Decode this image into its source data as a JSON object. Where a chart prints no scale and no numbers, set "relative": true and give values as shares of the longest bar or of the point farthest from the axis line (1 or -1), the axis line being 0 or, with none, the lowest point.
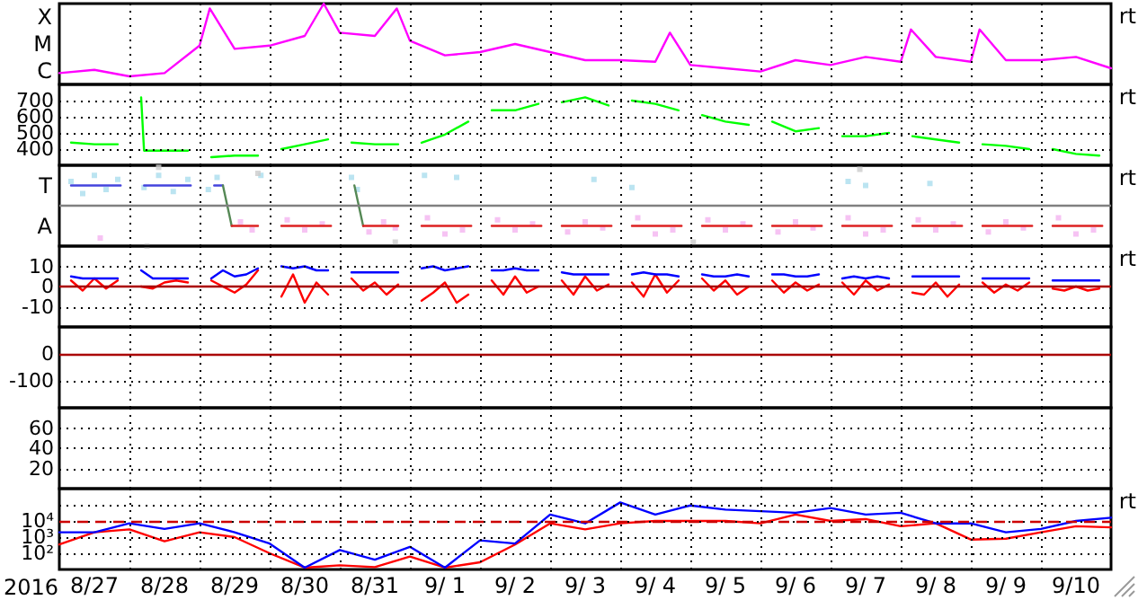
{
  "chart_data": [
    {
      "type": "line",
      "tick_labels": false,
      "relative": true,
      "grid": "x",
      "annotations": [
        "rt",
        "X",
        "M",
        "C"
      ],
      "xlim": [
        "2016-08-27T00:00",
        "2016-09-11T00:00"
      ],
      "xticks": [
        {
          "value": "2016-08-28T00:00",
          "label": null
        },
        {
          "value": "2016-08-29T00:00",
          "label": null
        },
        {
          "value": "2016-08-30T00:00",
          "label": null
        },
        {
          "value": "2016-08-31T00:00",
          "label": null
        },
        {
          "value": "2016-09-01T00:00",
          "label": null
        },
        {
          "value": "2016-09-02T00:00",
          "label": null
        },
        {
          "value": "2016-09-03T00:00",
          "label": null
        },
        {
          "value": "2016-09-04T00:00",
          "label": null
        },
        {
          "value": "2016-09-05T00:00",
          "label": null
        },
        {
          "value": "2016-09-06T00:00",
          "label": null
        },
        {
          "value": "2016-09-07T00:00",
          "label": null
        },
        {
          "value": "2016-09-08T00:00",
          "label": null
        },
        {
          "value": "2016-09-09T00:00",
          "label": null
        },
        {
          "value": "2016-09-10T00:00",
          "label": null
        }
      ],
      "x": [
        "2016-08-27T00:00",
        "2016-08-27T12:00",
        "2016-08-28T00:00",
        "2016-08-28T12:00",
        "2016-08-29T00:00",
        "2016-08-29T03:30",
        "2016-08-29T12:00",
        "2016-08-30T00:00",
        "2016-08-30T12:00",
        "2016-08-30T18:30",
        "2016-08-31T00:00",
        "2016-08-31T12:00",
        "2016-08-31T19:30",
        "2016-09-01T00:00",
        "2016-09-01T12:00",
        "2016-09-02T00:00",
        "2016-09-02T12:00",
        "2016-09-03T00:00",
        "2016-09-03T12:00",
        "2016-09-04T00:00",
        "2016-09-04T12:00",
        "2016-09-04T17:00",
        "2016-09-05T00:00",
        "2016-09-05T12:00",
        "2016-09-06T00:00",
        "2016-09-06T12:00",
        "2016-09-07T00:00",
        "2016-09-07T12:00",
        "2016-09-08T00:00",
        "2016-09-08T03:30",
        "2016-09-08T12:00",
        "2016-09-09T00:00",
        "2016-09-09T03:00",
        "2016-09-09T12:00",
        "2016-09-10T00:00",
        "2016-09-10T12:00",
        "2016-09-11T00:00"
      ],
      "series": [
        {
          "color": "#ff00ff",
          "values": [
            0.14,
            0.18,
            0.1,
            0.14,
            0.48,
            0.94,
            0.44,
            0.48,
            0.6,
            1,
            0.64,
            0.6,
            0.94,
            0.54,
            0.36,
            0.4,
            0.5,
            0.4,
            0.3,
            0.3,
            0.28,
            0.64,
            0.24,
            0.2,
            0.16,
            0.3,
            0.24,
            0.34,
            0.28,
            0.68,
            0.34,
            0.28,
            0.68,
            0.3,
            0.3,
            0.34,
            0.2
          ]
        }
      ]
    },
    {
      "type": "line",
      "tick_labels": "y",
      "grid": true,
      "annotations": [
        "rt"
      ],
      "xlim": [
        "2016-08-27T00:00",
        "2016-09-11T00:00"
      ],
      "xticks": [
        {
          "value": "2016-08-28T00:00",
          "label": null
        },
        {
          "value": "2016-08-29T00:00",
          "label": null
        },
        {
          "value": "2016-08-30T00:00",
          "label": null
        },
        {
          "value": "2016-08-31T00:00",
          "label": null
        },
        {
          "value": "2016-09-01T00:00",
          "label": null
        },
        {
          "value": "2016-09-02T00:00",
          "label": null
        },
        {
          "value": "2016-09-03T00:00",
          "label": null
        },
        {
          "value": "2016-09-04T00:00",
          "label": null
        },
        {
          "value": "2016-09-05T00:00",
          "label": null
        },
        {
          "value": "2016-09-06T00:00",
          "label": null
        },
        {
          "value": "2016-09-07T00:00",
          "label": null
        },
        {
          "value": "2016-09-08T00:00",
          "label": null
        },
        {
          "value": "2016-09-09T00:00",
          "label": null
        },
        {
          "value": "2016-09-10T00:00",
          "label": null
        }
      ],
      "ylim": [
        300,
        800
      ],
      "yticks": [
        400,
        500,
        600,
        700
      ],
      "x": [
        "2016-08-27T04:00",
        "2016-08-27T12:00",
        "2016-08-27T20:00",
        "2016-08-28T00:00",
        "2016-08-28T04:00",
        "2016-08-28T05:00",
        "2016-08-28T12:00",
        "2016-08-28T20:00",
        "2016-08-29T00:00",
        "2016-08-29T04:00",
        "2016-08-29T12:00",
        "2016-08-29T20:00",
        "2016-08-30T00:00",
        "2016-08-30T04:00",
        "2016-08-30T12:00",
        "2016-08-30T20:00",
        "2016-08-31T00:00",
        "2016-08-31T04:00",
        "2016-08-31T12:00",
        "2016-08-31T20:00",
        "2016-09-01T00:00",
        "2016-09-01T04:00",
        "2016-09-01T12:00",
        "2016-09-01T20:00",
        "2016-09-02T00:00",
        "2016-09-02T04:00",
        "2016-09-02T12:00",
        "2016-09-02T20:00",
        "2016-09-03T00:00",
        "2016-09-03T04:00",
        "2016-09-03T12:00",
        "2016-09-03T20:00",
        "2016-09-04T00:00",
        "2016-09-04T04:00",
        "2016-09-04T12:00",
        "2016-09-04T20:00",
        "2016-09-05T00:00",
        "2016-09-05T04:00",
        "2016-09-05T12:00",
        "2016-09-05T20:00",
        "2016-09-06T00:00",
        "2016-09-06T04:00",
        "2016-09-06T12:00",
        "2016-09-06T20:00",
        "2016-09-07T00:00",
        "2016-09-07T04:00",
        "2016-09-07T12:00",
        "2016-09-07T20:00",
        "2016-09-08T00:00",
        "2016-09-08T04:00",
        "2016-09-08T12:00",
        "2016-09-08T20:00",
        "2016-09-09T00:00",
        "2016-09-09T04:00",
        "2016-09-09T12:00",
        "2016-09-09T20:00",
        "2016-09-10T00:00",
        "2016-09-10T04:00",
        "2016-09-10T12:00",
        "2016-09-10T20:00"
      ],
      "series": [
        {
          "color": "#00ff00",
          "values": [
            440,
            430,
            430,
            null,
            720,
            390,
            390,
            390,
            null,
            350,
            360,
            360,
            null,
            400,
            430,
            460,
            null,
            440,
            430,
            430,
            null,
            440,
            490,
            570,
            null,
            640,
            640,
            680,
            null,
            690,
            720,
            670,
            null,
            700,
            680,
            640,
            null,
            610,
            570,
            550,
            null,
            570,
            510,
            530,
            null,
            480,
            480,
            500,
            null,
            480,
            460,
            440,
            null,
            430,
            420,
            400,
            null,
            400,
            370,
            360
          ]
        }
      ]
    },
    {
      "type": "line",
      "tick_labels": false,
      "relative": true,
      "grid": "x",
      "annotations": [
        "rt",
        "T",
        "A"
      ],
      "xlim": [
        "2016-08-27T00:00",
        "2016-09-11T00:00"
      ],
      "xticks": [
        {
          "value": "2016-08-28T00:00",
          "label": null
        },
        {
          "value": "2016-08-29T00:00",
          "label": null
        },
        {
          "value": "2016-08-30T00:00",
          "label": null
        },
        {
          "value": "2016-08-31T00:00",
          "label": null
        },
        {
          "value": "2016-09-01T00:00",
          "label": null
        },
        {
          "value": "2016-09-02T00:00",
          "label": null
        },
        {
          "value": "2016-09-03T00:00",
          "label": null
        },
        {
          "value": "2016-09-04T00:00",
          "label": null
        },
        {
          "value": "2016-09-05T00:00",
          "label": null
        },
        {
          "value": "2016-09-06T00:00",
          "label": null
        },
        {
          "value": "2016-09-07T00:00",
          "label": null
        },
        {
          "value": "2016-09-08T00:00",
          "label": null
        },
        {
          "value": "2016-09-09T00:00",
          "label": null
        },
        {
          "value": "2016-09-10T00:00",
          "label": null
        }
      ],
      "ref_lines": [
        {
          "axis": "y",
          "value": 0,
          "color": "#808080"
        }
      ],
      "series": [
        {
          "type": "scatter",
          "marker": "square",
          "color": "#aaddee",
          "x": [
            "2016-08-27T04:00",
            "2016-08-27T08:00",
            "2016-08-27T12:00",
            "2016-08-27T16:00",
            "2016-08-27T20:00",
            "2016-08-28T05:00",
            "2016-08-28T10:00",
            "2016-08-28T15:00",
            "2016-08-28T20:00",
            "2016-08-29T03:00",
            "2016-08-29T06:00",
            "2016-08-29T21:00",
            "2016-08-31T04:00",
            "2016-08-31T06:00",
            "2016-09-01T05:00",
            "2016-09-01T16:00",
            "2016-09-03T15:00",
            "2016-09-04T04:00",
            "2016-09-07T06:00",
            "2016-09-07T12:00",
            "2016-09-08T10:00"
          ],
          "values": [
            0.6,
            0.3,
            0.75,
            0.4,
            0.65,
            0.45,
            0.75,
            0.35,
            0.65,
            0.4,
            0.7,
            0.75,
            0.7,
            0.4,
            0.75,
            0.7,
            0.65,
            0.45,
            0.6,
            0.5,
            0.55
          ]
        },
        {
          "type": "scatter",
          "marker": "square",
          "color": "#f4b4f0",
          "x": [
            "2016-08-27T14:00",
            "2016-08-29T14:00",
            "2016-08-29T18:00",
            "2016-08-30T06:00",
            "2016-08-30T12:00",
            "2016-08-30T18:00",
            "2016-08-31T10:00",
            "2016-08-31T15:00",
            "2016-08-31T19:00",
            "2016-09-01T06:00",
            "2016-09-01T12:00",
            "2016-09-01T18:00",
            "2016-09-02T06:00",
            "2016-09-02T12:00",
            "2016-09-02T18:00",
            "2016-09-03T06:00",
            "2016-09-03T12:00",
            "2016-09-03T18:00",
            "2016-09-04T06:00",
            "2016-09-04T12:00",
            "2016-09-04T18:00",
            "2016-09-05T06:00",
            "2016-09-05T12:00",
            "2016-09-05T18:00",
            "2016-09-06T06:00",
            "2016-09-06T12:00",
            "2016-09-06T18:00",
            "2016-09-07T06:00",
            "2016-09-07T12:00",
            "2016-09-07T18:00",
            "2016-09-08T06:00",
            "2016-09-08T12:00",
            "2016-09-08T18:00",
            "2016-09-09T06:00",
            "2016-09-09T12:00",
            "2016-09-09T18:00",
            "2016-09-10T06:00",
            "2016-09-10T12:00",
            "2016-09-10T18:00"
          ],
          "values": [
            -0.8,
            -0.4,
            -0.6,
            -0.35,
            -0.6,
            -0.45,
            -0.65,
            -0.4,
            -0.55,
            -0.3,
            -0.7,
            -0.6,
            -0.35,
            -0.6,
            -0.45,
            -0.65,
            -0.4,
            -0.55,
            -0.3,
            -0.7,
            -0.6,
            -0.35,
            -0.6,
            -0.45,
            -0.65,
            -0.4,
            -0.55,
            -0.3,
            -0.7,
            -0.6,
            -0.35,
            -0.6,
            -0.45,
            -0.65,
            -0.4,
            -0.55,
            -0.3,
            -0.7,
            -0.6
          ]
        },
        {
          "type": "scatter",
          "marker": "square",
          "color": "#cccccc",
          "x": [
            "2016-08-28T06:00",
            "2016-08-28T10:00",
            "2016-08-29T20:00",
            "2016-08-31T19:00",
            "2016-09-05T01:00",
            "2016-09-07T10:00"
          ],
          "values": [
            -1,
            0.95,
            0.8,
            -0.9,
            -0.9,
            0.9
          ]
        },
        {
          "color": "#4444dd",
          "x": [
            "2016-08-27T04:00",
            "2016-08-27T21:00",
            "2016-08-28T00:00",
            "2016-08-28T05:00",
            "2016-08-28T21:00",
            "2016-08-29T00:00",
            "2016-08-29T05:00",
            "2016-08-29T08:00"
          ],
          "values": [
            0.5,
            0.5,
            null,
            0.5,
            0.5,
            null,
            0.5,
            0.5
          ]
        },
        {
          "color": "#558855",
          "x": [
            "2016-08-29T08:00",
            "2016-08-29T11:00",
            "2016-08-29T12:00",
            "2016-08-31T05:00",
            "2016-08-31T08:00"
          ],
          "values": [
            0.5,
            -0.5,
            null,
            0.5,
            -0.5
          ]
        },
        {
          "color": "#dd2222",
          "x": [
            "2016-08-29T11:00",
            "2016-08-29T20:00",
            "2016-08-30T00:00",
            "2016-08-30T04:00",
            "2016-08-30T21:00",
            "2016-08-31T00:00",
            "2016-08-31T08:00",
            "2016-08-31T20:00",
            "2016-09-01T00:00",
            "2016-09-01T04:00",
            "2016-09-01T21:00",
            "2016-09-02T00:00",
            "2016-09-02T04:00",
            "2016-09-02T21:00",
            "2016-09-03T00:00",
            "2016-09-03T04:00",
            "2016-09-03T21:00",
            "2016-09-04T00:00",
            "2016-09-04T04:00",
            "2016-09-04T21:00",
            "2016-09-05T00:00",
            "2016-09-05T04:00",
            "2016-09-05T21:00",
            "2016-09-06T00:00",
            "2016-09-06T04:00",
            "2016-09-06T21:00",
            "2016-09-07T00:00",
            "2016-09-07T04:00",
            "2016-09-07T21:00",
            "2016-09-08T00:00",
            "2016-09-08T04:00",
            "2016-09-08T21:00",
            "2016-09-09T00:00",
            "2016-09-09T04:00",
            "2016-09-09T21:00",
            "2016-09-10T00:00",
            "2016-09-10T04:00",
            "2016-09-10T21:00"
          ],
          "values": [
            -0.5,
            -0.5,
            null,
            -0.5,
            -0.5,
            null,
            -0.5,
            -0.5,
            null,
            -0.5,
            -0.5,
            null,
            -0.5,
            -0.5,
            null,
            -0.5,
            -0.5,
            null,
            -0.5,
            -0.5,
            null,
            -0.5,
            -0.5,
            null,
            -0.5,
            -0.5,
            null,
            -0.5,
            -0.5,
            null,
            -0.5,
            -0.5,
            null,
            -0.5,
            -0.5,
            null,
            -0.5,
            -0.5
          ]
        }
      ]
    },
    {
      "type": "line",
      "tick_labels": "y",
      "grid": true,
      "annotations": [
        "rt"
      ],
      "xlim": [
        "2016-08-27T00:00",
        "2016-09-11T00:00"
      ],
      "xticks": [
        {
          "value": "2016-08-28T00:00",
          "label": null
        },
        {
          "value": "2016-08-29T00:00",
          "label": null
        },
        {
          "value": "2016-08-30T00:00",
          "label": null
        },
        {
          "value": "2016-08-31T00:00",
          "label": null
        },
        {
          "value": "2016-09-01T00:00",
          "label": null
        },
        {
          "value": "2016-09-02T00:00",
          "label": null
        },
        {
          "value": "2016-09-03T00:00",
          "label": null
        },
        {
          "value": "2016-09-04T00:00",
          "label": null
        },
        {
          "value": "2016-09-05T00:00",
          "label": null
        },
        {
          "value": "2016-09-06T00:00",
          "label": null
        },
        {
          "value": "2016-09-07T00:00",
          "label": null
        },
        {
          "value": "2016-09-08T00:00",
          "label": null
        },
        {
          "value": "2016-09-09T00:00",
          "label": null
        },
        {
          "value": "2016-09-10T00:00",
          "label": null
        }
      ],
      "ylim": [
        -20,
        20
      ],
      "yticks": [
        -10,
        0,
        10
      ],
      "ref_lines": [
        {
          "axis": "y",
          "value": 0,
          "color": "#aa0000"
        }
      ],
      "x": [
        "2016-08-27T04:00",
        "2016-08-27T08:00",
        "2016-08-27T12:00",
        "2016-08-27T16:00",
        "2016-08-27T20:00",
        "2016-08-28T00:00",
        "2016-08-28T04:00",
        "2016-08-28T08:00",
        "2016-08-28T12:00",
        "2016-08-28T16:00",
        "2016-08-28T20:00",
        "2016-08-29T00:00",
        "2016-08-29T04:00",
        "2016-08-29T08:00",
        "2016-08-29T12:00",
        "2016-08-29T16:00",
        "2016-08-29T20:00",
        "2016-08-30T00:00",
        "2016-08-30T04:00",
        "2016-08-30T08:00",
        "2016-08-30T12:00",
        "2016-08-30T16:00",
        "2016-08-30T20:00",
        "2016-08-31T00:00",
        "2016-08-31T04:00",
        "2016-08-31T08:00",
        "2016-08-31T12:00",
        "2016-08-31T16:00",
        "2016-08-31T20:00",
        "2016-09-01T00:00",
        "2016-09-01T04:00",
        "2016-09-01T08:00",
        "2016-09-01T12:00",
        "2016-09-01T16:00",
        "2016-09-01T20:00",
        "2016-09-02T00:00",
        "2016-09-02T04:00",
        "2016-09-02T08:00",
        "2016-09-02T12:00",
        "2016-09-02T16:00",
        "2016-09-02T20:00",
        "2016-09-03T00:00",
        "2016-09-03T04:00",
        "2016-09-03T08:00",
        "2016-09-03T12:00",
        "2016-09-03T16:00",
        "2016-09-03T20:00",
        "2016-09-04T00:00",
        "2016-09-04T04:00",
        "2016-09-04T08:00",
        "2016-09-04T12:00",
        "2016-09-04T16:00",
        "2016-09-04T20:00",
        "2016-09-05T00:00",
        "2016-09-05T04:00",
        "2016-09-05T08:00",
        "2016-09-05T12:00",
        "2016-09-05T16:00",
        "2016-09-05T20:00",
        "2016-09-06T00:00",
        "2016-09-06T04:00",
        "2016-09-06T08:00",
        "2016-09-06T12:00",
        "2016-09-06T16:00",
        "2016-09-06T20:00",
        "2016-09-07T00:00",
        "2016-09-07T04:00",
        "2016-09-07T08:00",
        "2016-09-07T12:00",
        "2016-09-07T16:00",
        "2016-09-07T20:00",
        "2016-09-08T00:00",
        "2016-09-08T04:00",
        "2016-09-08T08:00",
        "2016-09-08T12:00",
        "2016-09-08T16:00",
        "2016-09-08T20:00",
        "2016-09-09T00:00",
        "2016-09-09T04:00",
        "2016-09-09T08:00",
        "2016-09-09T12:00",
        "2016-09-09T16:00",
        "2016-09-09T20:00",
        "2016-09-10T00:00",
        "2016-09-10T04:00",
        "2016-09-10T08:00",
        "2016-09-10T12:00",
        "2016-09-10T16:00",
        "2016-09-10T20:00"
      ],
      "series": [
        {
          "color": "#ff0000",
          "values": [
            3,
            -2,
            4,
            -1,
            3,
            null,
            0,
            -1,
            2,
            3,
            2,
            null,
            3,
            0,
            -3,
            1,
            8,
            null,
            -5,
            6,
            -8,
            2,
            -4,
            null,
            4,
            -2,
            2,
            -4,
            1,
            null,
            -7,
            -3,
            2,
            -8,
            -4,
            null,
            3,
            -4,
            5,
            -3,
            0,
            null,
            3,
            -4,
            5,
            -2,
            1,
            null,
            2,
            -5,
            6,
            -3,
            3,
            null,
            4,
            -2,
            3,
            -4,
            0,
            null,
            3,
            -3,
            2,
            -2,
            1,
            null,
            2,
            -4,
            3,
            -2,
            1,
            null,
            -3,
            -4,
            2,
            -5,
            1,
            null,
            2,
            -3,
            1,
            -2,
            2,
            null,
            -1,
            -2,
            0,
            -2,
            -1
          ]
        },
        {
          "color": "#0000ff",
          "values": [
            5,
            4,
            4,
            4,
            4,
            null,
            8,
            4,
            4,
            4,
            4,
            null,
            4,
            8,
            5,
            6,
            9,
            null,
            10,
            9,
            10,
            8,
            8,
            null,
            7,
            7,
            7,
            7,
            7,
            null,
            9,
            10,
            8,
            9,
            10,
            null,
            8,
            8,
            9,
            8,
            8,
            null,
            7,
            6,
            6,
            6,
            6,
            null,
            6,
            7,
            6,
            6,
            5,
            null,
            6,
            5,
            5,
            6,
            5,
            null,
            6,
            6,
            5,
            5,
            6,
            null,
            4,
            5,
            4,
            5,
            4,
            null,
            5,
            5,
            5,
            5,
            5,
            null,
            4,
            4,
            4,
            4,
            4,
            null,
            3,
            3,
            3,
            3,
            3
          ]
        }
      ]
    },
    {
      "type": "line",
      "tick_labels": "y",
      "grid": true,
      "xlim": [
        "2016-08-27T00:00",
        "2016-09-11T00:00"
      ],
      "xticks": [
        {
          "value": "2016-08-28T00:00",
          "label": null
        },
        {
          "value": "2016-08-29T00:00",
          "label": null
        },
        {
          "value": "2016-08-30T00:00",
          "label": null
        },
        {
          "value": "2016-08-31T00:00",
          "label": null
        },
        {
          "value": "2016-09-01T00:00",
          "label": null
        },
        {
          "value": "2016-09-02T00:00",
          "label": null
        },
        {
          "value": "2016-09-03T00:00",
          "label": null
        },
        {
          "value": "2016-09-04T00:00",
          "label": null
        },
        {
          "value": "2016-09-05T00:00",
          "label": null
        },
        {
          "value": "2016-09-06T00:00",
          "label": null
        },
        {
          "value": "2016-09-07T00:00",
          "label": null
        },
        {
          "value": "2016-09-08T00:00",
          "label": null
        },
        {
          "value": "2016-09-09T00:00",
          "label": null
        },
        {
          "value": "2016-09-10T00:00",
          "label": null
        }
      ],
      "ylim": [
        -200,
        100
      ],
      "yticks": [
        -100,
        0
      ],
      "ref_lines": [
        {
          "axis": "y",
          "value": 0,
          "color": "#aa0000"
        }
      ]
    },
    {
      "type": "line",
      "tick_labels": "y",
      "grid": true,
      "xlim": [
        "2016-08-27T00:00",
        "2016-09-11T00:00"
      ],
      "xticks": [
        {
          "value": "2016-08-28T00:00",
          "label": null
        },
        {
          "value": "2016-08-29T00:00",
          "label": null
        },
        {
          "value": "2016-08-30T00:00",
          "label": null
        },
        {
          "value": "2016-08-31T00:00",
          "label": null
        },
        {
          "value": "2016-09-01T00:00",
          "label": null
        },
        {
          "value": "2016-09-02T00:00",
          "label": null
        },
        {
          "value": "2016-09-03T00:00",
          "label": null
        },
        {
          "value": "2016-09-04T00:00",
          "label": null
        },
        {
          "value": "2016-09-05T00:00",
          "label": null
        },
        {
          "value": "2016-09-06T00:00",
          "label": null
        },
        {
          "value": "2016-09-07T00:00",
          "label": null
        },
        {
          "value": "2016-09-08T00:00",
          "label": null
        },
        {
          "value": "2016-09-09T00:00",
          "label": null
        },
        {
          "value": "2016-09-10T00:00",
          "label": null
        }
      ],
      "ylim": [
        0,
        80
      ],
      "yticks": [
        20,
        40,
        60
      ]
    },
    {
      "type": "line",
      "log": true,
      "grid": true,
      "annotations": [
        "rt"
      ],
      "xlabel": "2016",
      "xlim": [
        "2016-08-27T00:00",
        "2016-09-11T00:00"
      ],
      "xticks": [
        {
          "value": "2016-08-27T12:00",
          "label": "8/27"
        },
        {
          "value": "2016-08-28T00:00",
          "label": null
        },
        {
          "value": "2016-08-28T12:00",
          "label": "8/28"
        },
        {
          "value": "2016-08-29T00:00",
          "label": null
        },
        {
          "value": "2016-08-29T12:00",
          "label": "8/29"
        },
        {
          "value": "2016-08-30T00:00",
          "label": null
        },
        {
          "value": "2016-08-30T12:00",
          "label": "8/30"
        },
        {
          "value": "2016-08-31T00:00",
          "label": null
        },
        {
          "value": "2016-08-31T12:00",
          "label": "8/31"
        },
        {
          "value": "2016-09-01T00:00",
          "label": null
        },
        {
          "value": "2016-09-01T12:00",
          "label": "9/ 1"
        },
        {
          "value": "2016-09-02T00:00",
          "label": null
        },
        {
          "value": "2016-09-02T12:00",
          "label": "9/ 2"
        },
        {
          "value": "2016-09-03T00:00",
          "label": null
        },
        {
          "value": "2016-09-03T12:00",
          "label": "9/ 3"
        },
        {
          "value": "2016-09-04T00:00",
          "label": null
        },
        {
          "value": "2016-09-04T12:00",
          "label": "9/ 4"
        },
        {
          "value": "2016-09-05T00:00",
          "label": null
        },
        {
          "value": "2016-09-05T12:00",
          "label": "9/ 5"
        },
        {
          "value": "2016-09-06T00:00",
          "label": null
        },
        {
          "value": "2016-09-06T12:00",
          "label": "9/ 6"
        },
        {
          "value": "2016-09-07T00:00",
          "label": null
        },
        {
          "value": "2016-09-07T12:00",
          "label": "9/ 7"
        },
        {
          "value": "2016-09-08T00:00",
          "label": null
        },
        {
          "value": "2016-09-08T12:00",
          "label": "9/ 8"
        },
        {
          "value": "2016-09-09T00:00",
          "label": null
        },
        {
          "value": "2016-09-09T12:00",
          "label": "9/ 9"
        },
        {
          "value": "2016-09-10T00:00",
          "label": null
        },
        {
          "value": "2016-09-10T12:00",
          "label": "9/10"
        }
      ],
      "ylim": [
        10,
        1000000
      ],
      "yticks": [
        {
          "value": 100,
          "label": "10²"
        },
        {
          "value": 1000,
          "label": "10³"
        },
        {
          "value": 10000,
          "label": "10⁴"
        },
        {
          "value": 100000,
          "label": null
        }
      ],
      "ref_lines": [
        {
          "axis": "y",
          "value": 10000,
          "color": "#cc0000",
          "line_style": "dashed"
        }
      ],
      "x": [
        "2016-08-27T00:00",
        "2016-08-27T12:00",
        "2016-08-28T00:00",
        "2016-08-28T12:00",
        "2016-08-29T00:00",
        "2016-08-29T12:00",
        "2016-08-30T00:00",
        "2016-08-30T12:00",
        "2016-08-31T00:00",
        "2016-08-31T12:00",
        "2016-09-01T00:00",
        "2016-09-01T12:00",
        "2016-09-02T00:00",
        "2016-09-02T12:00",
        "2016-09-03T00:00",
        "2016-09-03T12:00",
        "2016-09-04T00:00",
        "2016-09-04T12:00",
        "2016-09-05T00:00",
        "2016-09-05T12:00",
        "2016-09-06T00:00",
        "2016-09-06T12:00",
        "2016-09-07T00:00",
        "2016-09-07T12:00",
        "2016-09-08T00:00",
        "2016-09-08T12:00",
        "2016-09-09T00:00",
        "2016-09-09T12:00",
        "2016-09-10T00:00",
        "2016-09-10T12:00",
        "2016-09-11T00:00"
      ],
      "series": [
        {
          "color": "#ff0000",
          "values": [
            350,
            2000,
            3000,
            550,
            2000,
            1000,
            100,
            13,
            18,
            14,
            63,
            13,
            28,
            350,
            7100,
            3000,
            7100,
            10000,
            10000,
            10000,
            7100,
            25000,
            10000,
            13000,
            4700,
            7100,
            710,
            800,
            2000,
            4700,
            4000
          ]
        },
        {
          "color": "#0000ff",
          "values": [
            2000,
            2000,
            7100,
            3200,
            7100,
            2000,
            400,
            13,
            160,
            40,
            250,
            13,
            630,
            400,
            25000,
            7100,
            140000,
            25000,
            91000,
            50000,
            40000,
            32000,
            63000,
            25000,
            32000,
            7100,
            7100,
            2000,
            3200,
            10000,
            16000
          ]
        }
      ]
    }
  ]
}
